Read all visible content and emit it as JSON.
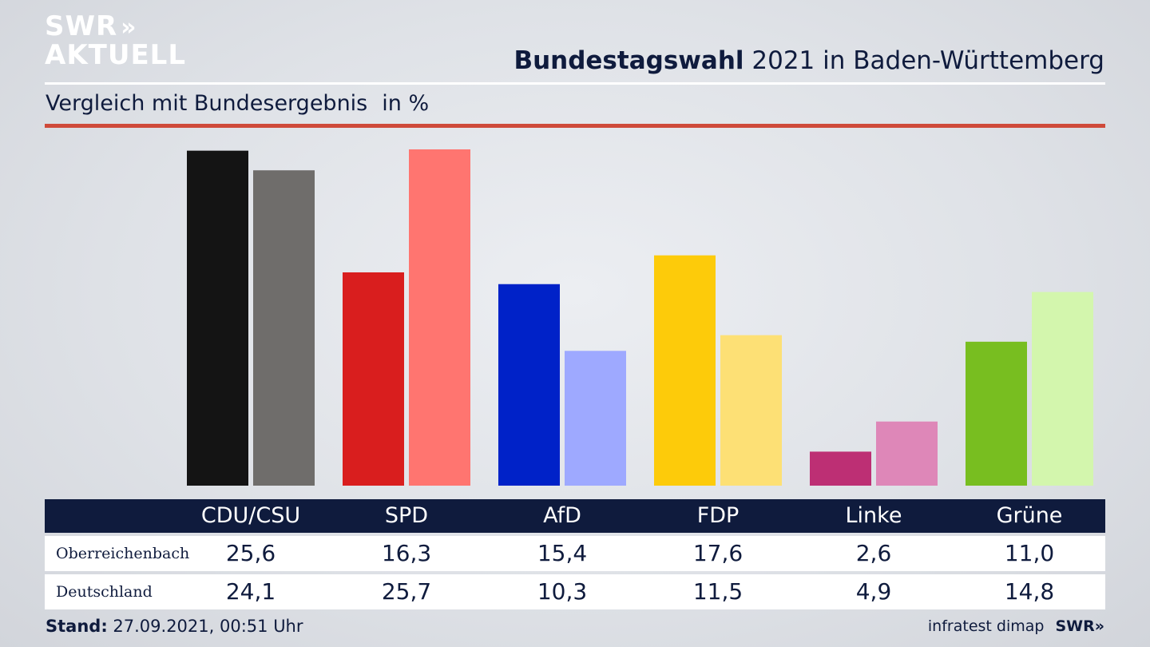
{
  "brand": {
    "logo_line1": "SWR",
    "logo_arrows": "»",
    "logo_line2": "AKTUELL",
    "footer_logo": "SWR»"
  },
  "header": {
    "title_bold": "Bundestagswahl",
    "title_rest": "2021 in Baden-Württemberg",
    "subtitle": "Vergleich mit Bundesergebnis",
    "unit": "in %"
  },
  "table": {
    "row1_label": "Oberreichenbach",
    "row2_label": "Deutschland",
    "row1_values": [
      "25,6",
      "16,3",
      "15,4",
      "17,6",
      "2,6",
      "11,0"
    ],
    "row2_values": [
      "24,1",
      "25,7",
      "10,3",
      "11,5",
      "4,9",
      "14,8"
    ]
  },
  "footer": {
    "stand_label": "Stand:",
    "stand_value": "27.09.2021, 00:51 Uhr",
    "source": "infratest dimap"
  },
  "chart_data": {
    "type": "bar",
    "categories": [
      "CDU/CSU",
      "SPD",
      "AfD",
      "FDP",
      "Linke",
      "Grüne"
    ],
    "series": [
      {
        "name": "Oberreichenbach",
        "values": [
          25.6,
          16.3,
          15.4,
          17.6,
          2.6,
          11.0
        ]
      },
      {
        "name": "Deutschland",
        "values": [
          24.1,
          25.7,
          10.3,
          11.5,
          4.9,
          14.8
        ]
      }
    ],
    "colors_primary": [
      "#141414",
      "#d91e1e",
      "#0022c8",
      "#fdcb0a",
      "#bd2f74",
      "#78be20"
    ],
    "colors_secondary": [
      "#6f6d6b",
      "#ff7570",
      "#9ea9ff",
      "#fde075",
      "#de87b8",
      "#d3f6ad"
    ],
    "title": "",
    "xlabel": "",
    "ylabel": "",
    "ylim": [
      0,
      25.7
    ],
    "grid": false,
    "legend": "none"
  }
}
